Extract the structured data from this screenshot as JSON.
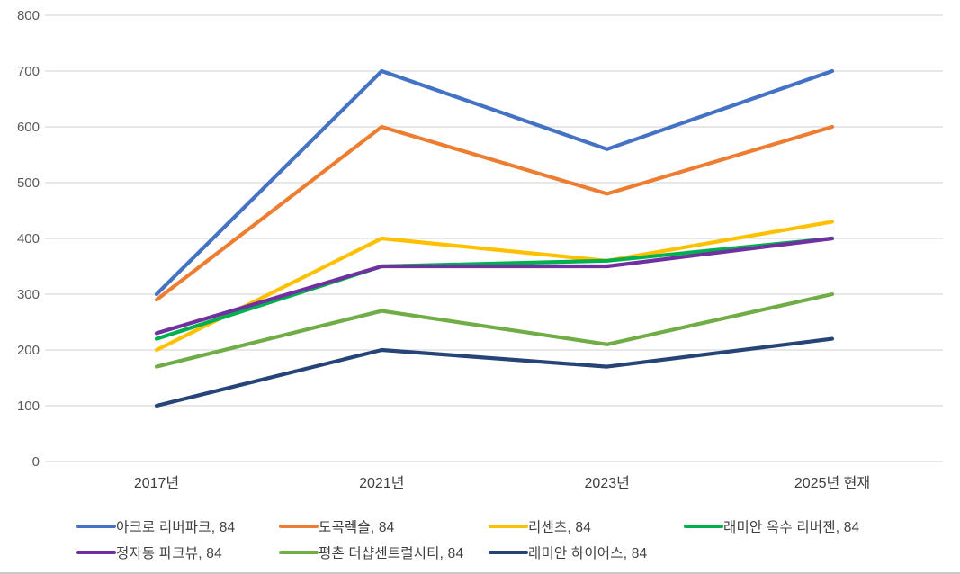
{
  "chart_data": {
    "type": "line",
    "title": "",
    "xlabel": "",
    "ylabel": "",
    "categories": [
      "2017년",
      "2021년",
      "2023년",
      "2025년 현재"
    ],
    "series": [
      {
        "name": "아크로 리버파크, 84",
        "color": "#4472C4",
        "values": [
          300,
          700,
          560,
          700
        ]
      },
      {
        "name": "도곡렉슬, 84",
        "color": "#ED7D31",
        "values": [
          290,
          600,
          480,
          600
        ]
      },
      {
        "name": "리센츠, 84",
        "color": "#FFC000",
        "values": [
          200,
          400,
          360,
          430
        ]
      },
      {
        "name": "래미안 옥수 리버젠, 84",
        "color": "#00B050",
        "values": [
          220,
          350,
          360,
          400
        ]
      },
      {
        "name": "정자동 파크뷰, 84",
        "color": "#7030A0",
        "values": [
          230,
          350,
          350,
          400
        ]
      },
      {
        "name": "평촌 더샵센트럴시티, 84",
        "color": "#70AD47",
        "values": [
          170,
          270,
          210,
          300
        ]
      },
      {
        "name": "래미안 하이어스, 84",
        "color": "#264478",
        "values": [
          100,
          200,
          170,
          220
        ]
      }
    ],
    "ylim": [
      0,
      800
    ],
    "ytick_step": 100,
    "ytick_labels": [
      "0",
      "100",
      "200",
      "300",
      "400",
      "500",
      "600",
      "700",
      "800"
    ],
    "grid": "horizontal",
    "legend_position": "bottom",
    "styles": {
      "gridline_color": "#D9D9D9",
      "tick_label_color": "#595959",
      "xtick_label_color": "#404040",
      "legend_text_color": "#404040",
      "background": "#FFFFFF"
    }
  }
}
